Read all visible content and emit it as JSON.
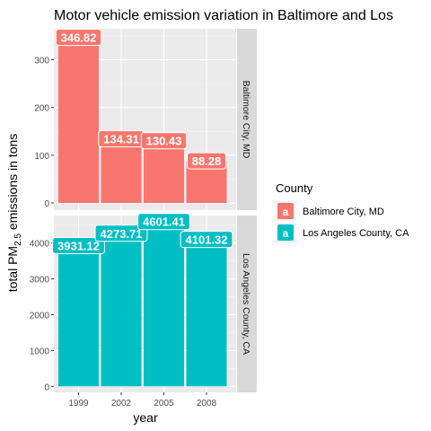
{
  "chart_data": {
    "type": "bar",
    "title": "Motor vehicle emission variation in Baltimore and Los",
    "xlabel": "year",
    "ylabel_parts": {
      "before": "total PM",
      "subscript": "2.5",
      "after": " emissions in tons"
    },
    "categories": [
      "1999",
      "2002",
      "2005",
      "2008"
    ],
    "facets": [
      {
        "name": "Baltimore City, MD",
        "color": "#F8766D",
        "values": [
          346.82,
          134.31,
          130.43,
          88.28
        ],
        "labels": [
          "346.82",
          "134.31",
          "130.43",
          "88.28"
        ],
        "ylim": [
          -15,
          365
        ],
        "yticks": [
          0,
          100,
          200,
          300
        ]
      },
      {
        "name": "Los Angeles County, CA",
        "color": "#00BFC4",
        "values": [
          3931.12,
          4273.71,
          4601.41,
          4101.32
        ],
        "labels": [
          "3931.12",
          "4273.71",
          "4601.41",
          "4101.32"
        ],
        "ylim": [
          -168,
          4770
        ],
        "yticks": [
          0,
          1000,
          2000,
          3000,
          4000
        ]
      }
    ],
    "legend": {
      "title": "County",
      "position": "right",
      "key_glyph": "a",
      "entries": [
        "Baltimore City, MD",
        "Los Angeles County, CA"
      ]
    },
    "grid": true
  },
  "style": {
    "panel_bg": "#EBEBEB",
    "strip_bg": "#D9D9D9",
    "grid_major": "#FFFFFF",
    "text_dark": "#1A1A1A",
    "axis_text": "#4D4D4D"
  }
}
